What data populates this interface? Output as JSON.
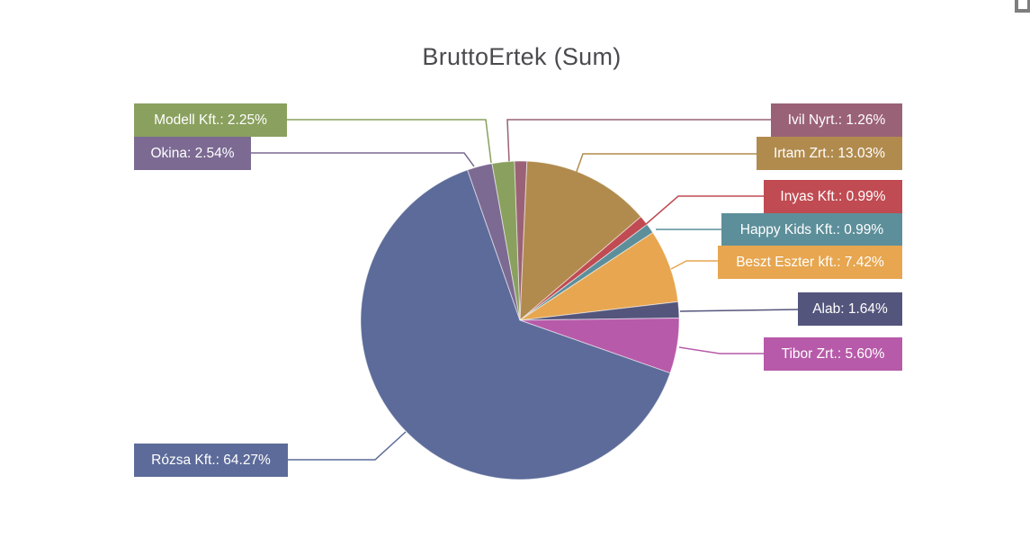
{
  "chart_data": {
    "type": "pie",
    "title": "BruttoErtek (Sum)",
    "value_field": "BruttoErtek",
    "aggregation": "Sum",
    "legend_position": "callout-labels",
    "start_angle_deg": -2,
    "title_color": "#4a4a4f",
    "label_text_color": "#ffffff",
    "slices": [
      {
        "name": "Ivil Nyrt.",
        "pct": 1.26,
        "label": "Ivil Nyrt.: 1.26%",
        "color": "#9a6277"
      },
      {
        "name": "Irtam Zrt.",
        "pct": 13.03,
        "label": "Irtam Zrt.: 13.03%",
        "color": "#b18b4e"
      },
      {
        "name": "Inyas Kft.",
        "pct": 0.99,
        "label": "Inyas Kft.: 0.99%",
        "color": "#c04b52"
      },
      {
        "name": "Happy Kids Kft.",
        "pct": 0.99,
        "label": "Happy Kids Kft.: 0.99%",
        "color": "#5d8f9a"
      },
      {
        "name": "Beszt Eszter kft.",
        "pct": 7.42,
        "label": "Beszt Eszter kft.: 7.42%",
        "color": "#e7a64f"
      },
      {
        "name": "Alab",
        "pct": 1.64,
        "label": "Alab: 1.64%",
        "color": "#54557c"
      },
      {
        "name": "Tibor Zrt.",
        "pct": 5.6,
        "label": "Tibor Zrt.: 5.60%",
        "color": "#b75aa9"
      },
      {
        "name": "Rózsa Kft.",
        "pct": 64.27,
        "label": "Rózsa Kft.: 64.27%",
        "color": "#5c6b99"
      },
      {
        "name": "Okina",
        "pct": 2.54,
        "label": "Okina: 2.54%",
        "color": "#7c6a93"
      },
      {
        "name": "Modell Kft.",
        "pct": 2.25,
        "label": "Modell Kft.: 2.25%",
        "color": "#8aa05e"
      }
    ]
  },
  "icons": {
    "corner": "focus-mode-corner-icon"
  }
}
